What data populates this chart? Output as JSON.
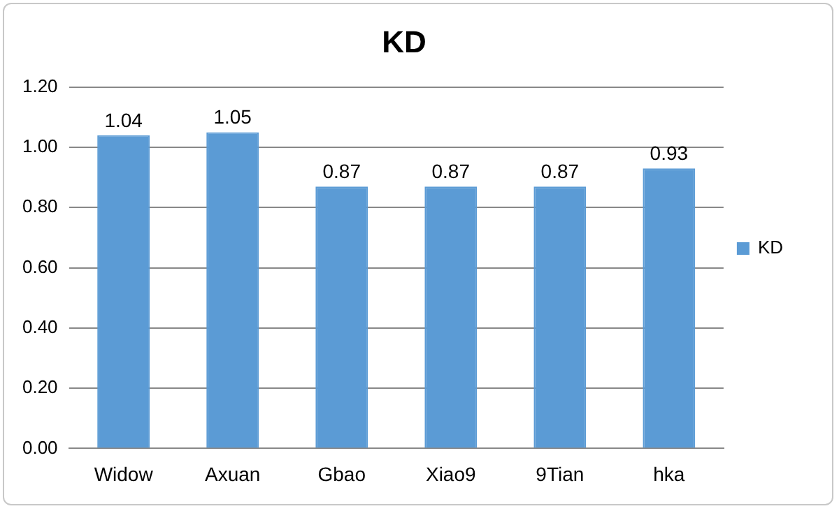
{
  "chart_data": {
    "type": "bar",
    "title": "KD",
    "categories": [
      "Widow",
      "Axuan",
      "Gbao",
      "Xiao9",
      "9Tian",
      "hka"
    ],
    "series": [
      {
        "name": "KD",
        "color": "#5b9bd5",
        "values": [
          1.04,
          1.05,
          0.87,
          0.87,
          0.87,
          0.93
        ]
      }
    ],
    "ylim": [
      0,
      1.2
    ],
    "yticks": [
      {
        "value": 0,
        "label": "0.00"
      },
      {
        "value": 0.2,
        "label": "0.20"
      },
      {
        "value": 0.4,
        "label": "0.40"
      },
      {
        "value": 0.6,
        "label": "0.60"
      },
      {
        "value": 0.8,
        "label": "0.80"
      },
      {
        "value": 1,
        "label": "1.00"
      },
      {
        "value": 1.2,
        "label": "1.20"
      }
    ],
    "grid": "y",
    "legend": "right",
    "data_labels": true
  }
}
